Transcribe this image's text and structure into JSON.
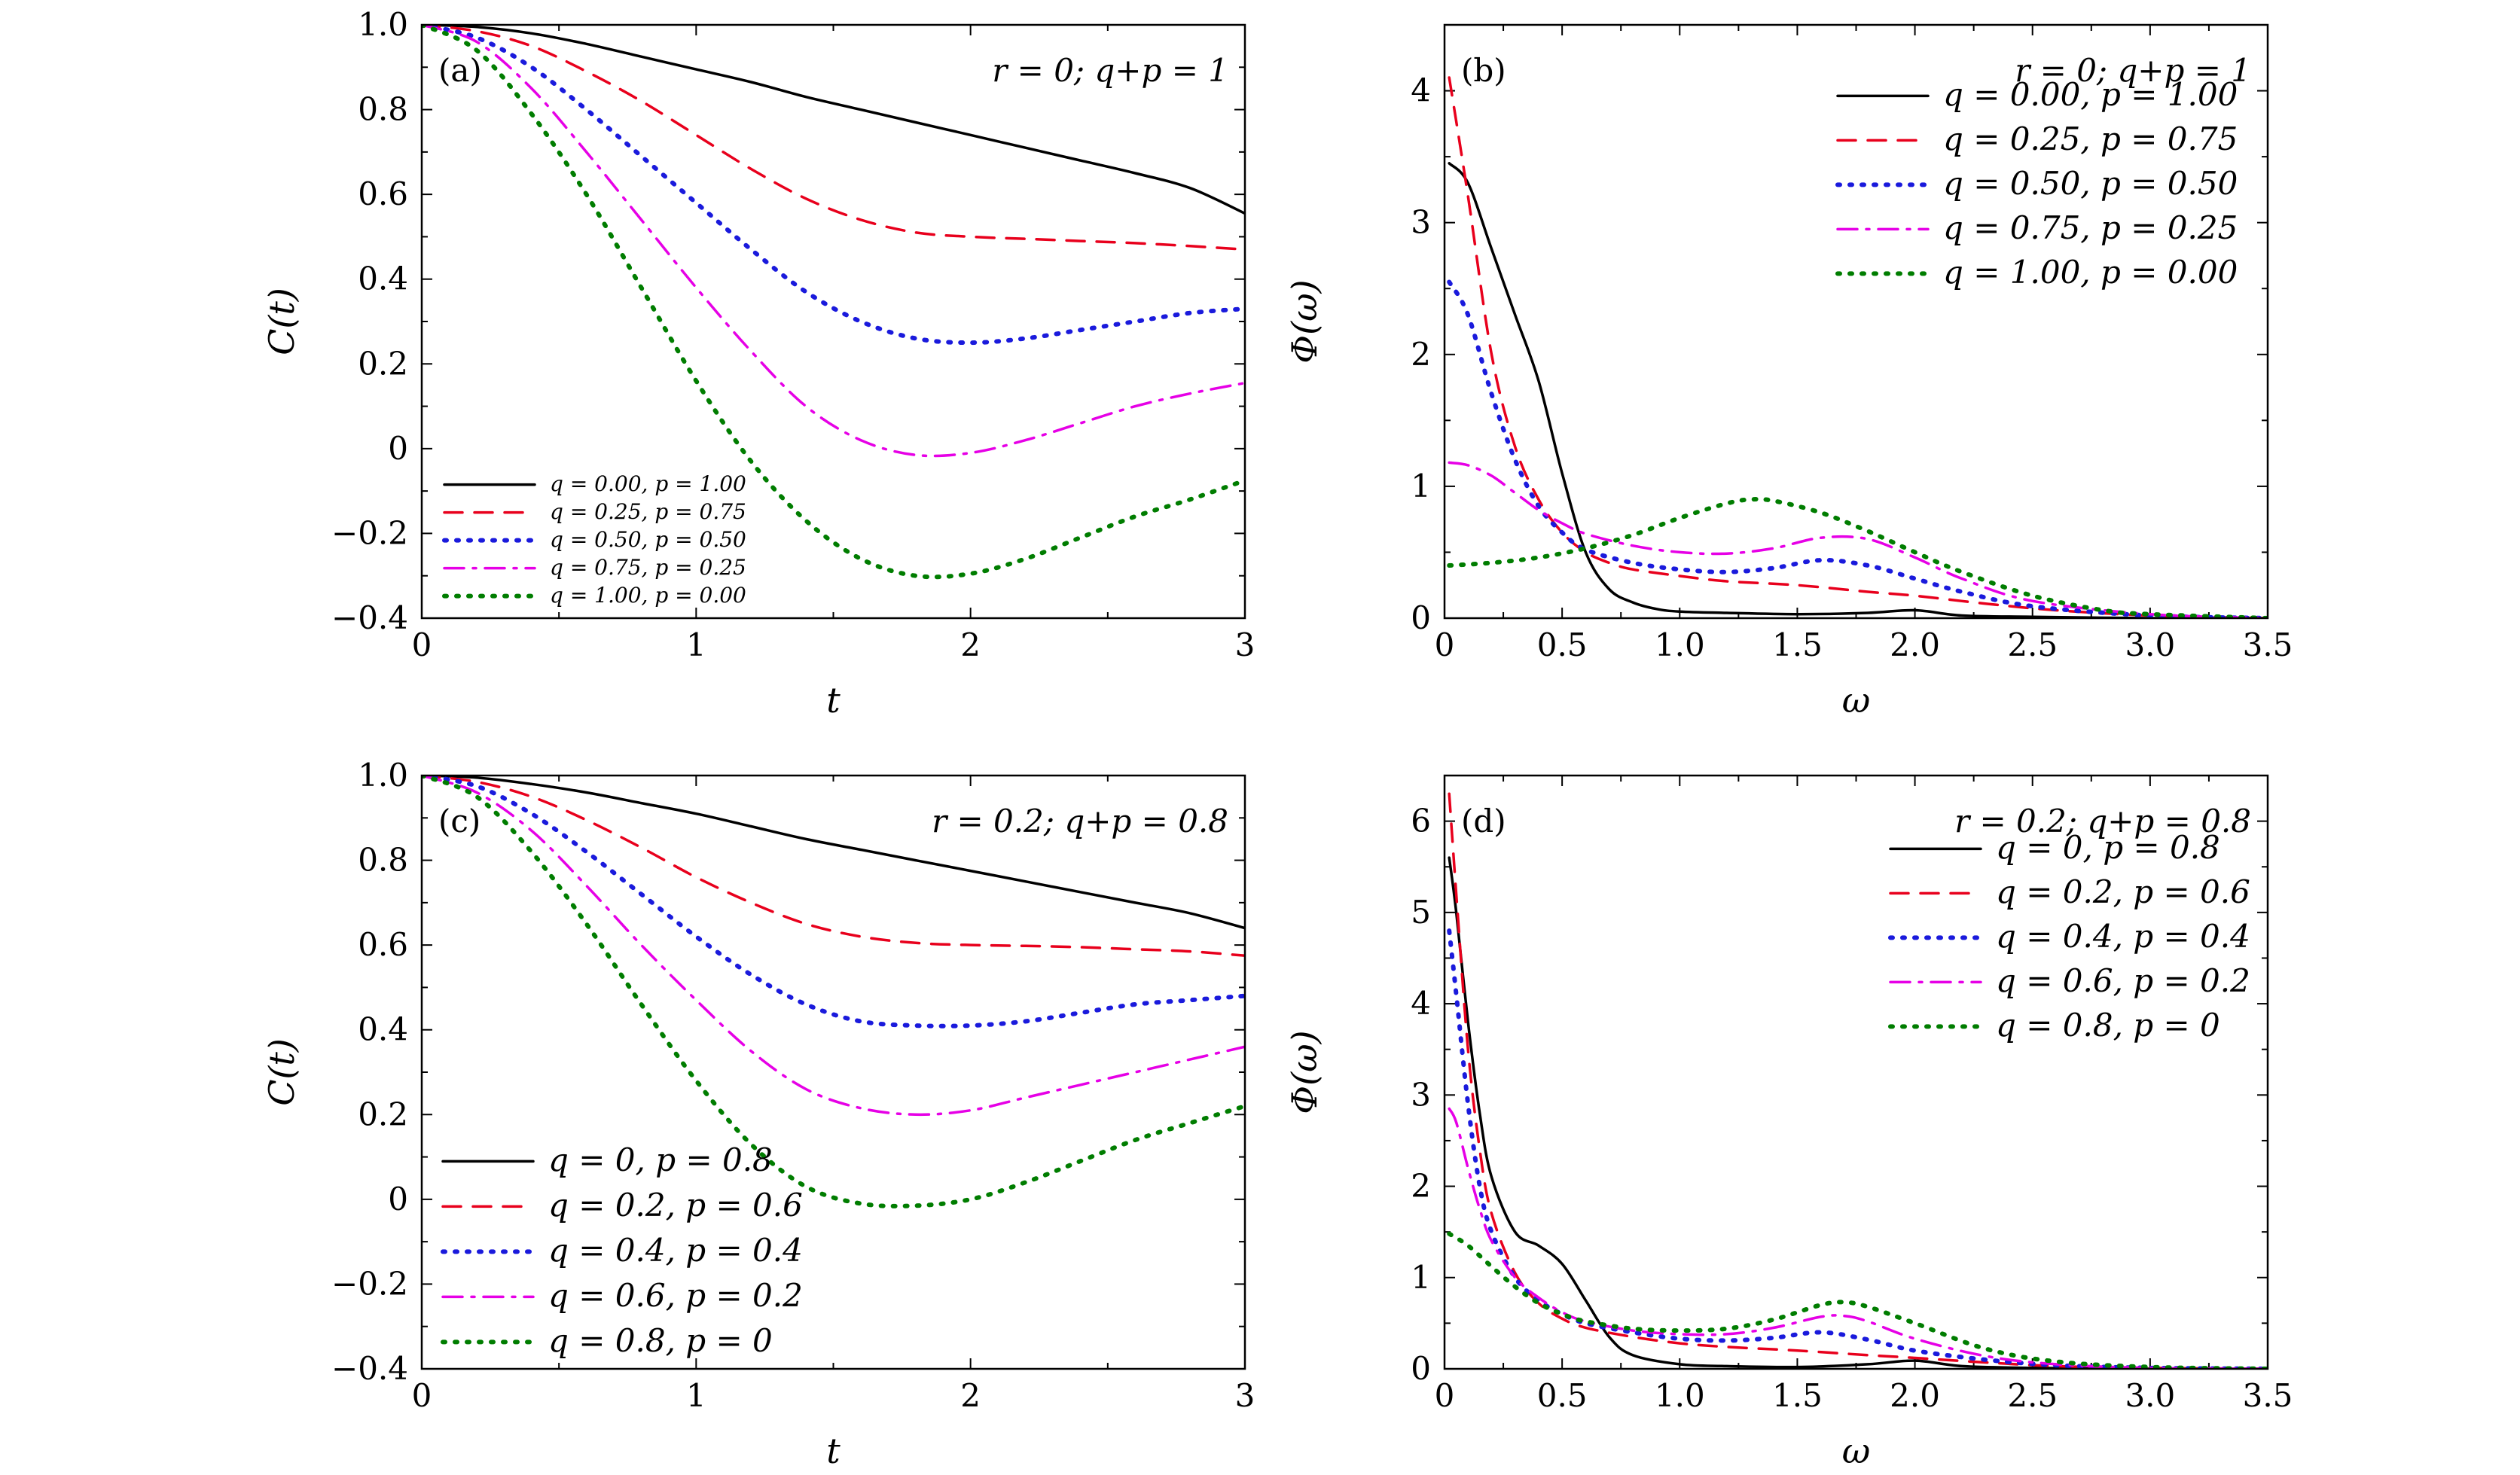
{
  "chart_data": [
    {
      "id": "a",
      "type": "line",
      "panel_label": "(a)",
      "params": "r = 0;  q+p = 1",
      "xlabel": "t",
      "ylabel": "C(t)",
      "xlim": [
        0,
        3
      ],
      "ylim": [
        -0.4,
        1.0
      ],
      "xticks": [
        0,
        1,
        2,
        3
      ],
      "xtick_labels": [
        "0",
        "1",
        "2",
        "3"
      ],
      "yticks": [
        -0.4,
        -0.2,
        0,
        0.2,
        0.4,
        0.6,
        0.8,
        1.0
      ],
      "ytick_labels": [
        "−0.4",
        "−0.2",
        "0",
        "0.2",
        "0.4",
        "0.6",
        "0.8",
        "1.0"
      ],
      "legend_position": "bottom-left",
      "series": [
        {
          "name": "q = 0.00,  p = 1.00",
          "color": "#000000",
          "dash": "solid",
          "x": [
            0,
            0.2,
            0.4,
            0.6,
            0.8,
            1.0,
            1.2,
            1.4,
            1.6,
            1.8,
            2.0,
            2.2,
            2.4,
            2.6,
            2.8,
            3.0
          ],
          "y": [
            1.0,
            0.995,
            0.98,
            0.955,
            0.925,
            0.895,
            0.865,
            0.83,
            0.8,
            0.77,
            0.74,
            0.71,
            0.68,
            0.65,
            0.615,
            0.555
          ]
        },
        {
          "name": "q = 0.25,  p = 0.75",
          "color": "#e8001c",
          "dash": "dashed",
          "x": [
            0,
            0.2,
            0.4,
            0.6,
            0.8,
            1.0,
            1.2,
            1.4,
            1.6,
            1.8,
            2.0,
            2.2,
            2.4,
            2.6,
            2.8,
            3.0
          ],
          "y": [
            1.0,
            0.985,
            0.95,
            0.89,
            0.82,
            0.74,
            0.66,
            0.59,
            0.54,
            0.51,
            0.5,
            0.495,
            0.49,
            0.485,
            0.478,
            0.47
          ]
        },
        {
          "name": "q = 0.50,  p = 0.50",
          "color": "#1a1adc",
          "dash": "dotted",
          "x": [
            0,
            0.2,
            0.4,
            0.6,
            0.8,
            1.0,
            1.2,
            1.4,
            1.6,
            1.8,
            2.0,
            2.2,
            2.4,
            2.6,
            2.8,
            3.0
          ],
          "y": [
            1.0,
            0.97,
            0.9,
            0.8,
            0.69,
            0.58,
            0.47,
            0.37,
            0.3,
            0.26,
            0.25,
            0.26,
            0.28,
            0.3,
            0.32,
            0.33
          ]
        },
        {
          "name": "q = 0.75,  p = 0.25",
          "color": "#e600e6",
          "dash": "dashdot",
          "x": [
            0,
            0.2,
            0.4,
            0.6,
            0.8,
            1.0,
            1.2,
            1.4,
            1.6,
            1.8,
            2.0,
            2.2,
            2.4,
            2.6,
            2.8,
            3.0
          ],
          "y": [
            1.0,
            0.96,
            0.85,
            0.7,
            0.54,
            0.38,
            0.23,
            0.1,
            0.02,
            -0.015,
            -0.01,
            0.02,
            0.06,
            0.1,
            0.13,
            0.155
          ]
        },
        {
          "name": "q = 1.00,  p = 0.00",
          "color": "#007d00",
          "dash": "dotted",
          "x": [
            0,
            0.2,
            0.4,
            0.6,
            0.8,
            1.0,
            1.2,
            1.4,
            1.6,
            1.8,
            2.0,
            2.2,
            2.4,
            2.6,
            2.8,
            3.0
          ],
          "y": [
            1.0,
            0.94,
            0.79,
            0.6,
            0.38,
            0.16,
            -0.03,
            -0.17,
            -0.26,
            -0.3,
            -0.295,
            -0.26,
            -0.21,
            -0.16,
            -0.12,
            -0.075
          ]
        }
      ]
    },
    {
      "id": "b",
      "type": "line",
      "panel_label": "(b)",
      "params": "r = 0;  q+p = 1",
      "xlabel": "ω",
      "ylabel": "Φ(ω)",
      "xlim": [
        0,
        3.5
      ],
      "ylim": [
        0,
        4.5
      ],
      "xticks": [
        0,
        0.5,
        1.0,
        1.5,
        2.0,
        2.5,
        3.0,
        3.5
      ],
      "xtick_labels": [
        "0",
        "0.5",
        "1.0",
        "1.5",
        "2.0",
        "2.5",
        "3.0",
        "3.5"
      ],
      "yticks": [
        0,
        1,
        2,
        3,
        4
      ],
      "ytick_labels": [
        "0",
        "1",
        "2",
        "3",
        "4"
      ],
      "legend_position": "top-right",
      "series": [
        {
          "name": "q = 0.00,  p = 1.00",
          "color": "#000000",
          "dash": "solid",
          "x": [
            0.02,
            0.1,
            0.2,
            0.3,
            0.4,
            0.5,
            0.6,
            0.7,
            0.8,
            0.9,
            1.0,
            1.2,
            1.5,
            1.8,
            2.0,
            2.2,
            2.5,
            3.0,
            3.5
          ],
          "y": [
            3.45,
            3.3,
            2.8,
            2.3,
            1.8,
            1.1,
            0.5,
            0.22,
            0.12,
            0.07,
            0.05,
            0.04,
            0.03,
            0.04,
            0.06,
            0.02,
            0.01,
            0.0,
            0.0
          ]
        },
        {
          "name": "q = 0.25,  p = 0.75",
          "color": "#e8001c",
          "dash": "dashed",
          "x": [
            0.02,
            0.1,
            0.2,
            0.3,
            0.4,
            0.5,
            0.6,
            0.7,
            0.8,
            1.0,
            1.2,
            1.5,
            1.8,
            2.0,
            2.3,
            2.6,
            3.0,
            3.5
          ],
          "y": [
            4.1,
            3.2,
            2.0,
            1.3,
            0.9,
            0.65,
            0.5,
            0.42,
            0.37,
            0.32,
            0.28,
            0.25,
            0.2,
            0.17,
            0.11,
            0.06,
            0.02,
            0.0
          ]
        },
        {
          "name": "q = 0.50,  p = 0.50",
          "color": "#1a1adc",
          "dash": "dotted",
          "x": [
            0.02,
            0.1,
            0.2,
            0.3,
            0.4,
            0.5,
            0.6,
            0.8,
            1.0,
            1.2,
            1.4,
            1.6,
            1.8,
            2.0,
            2.2,
            2.5,
            3.0,
            3.5
          ],
          "y": [
            2.55,
            2.3,
            1.7,
            1.2,
            0.85,
            0.65,
            0.52,
            0.42,
            0.37,
            0.35,
            0.38,
            0.44,
            0.4,
            0.3,
            0.2,
            0.09,
            0.02,
            0.0
          ]
        },
        {
          "name": "q = 0.75,  p = 0.25",
          "color": "#e600e6",
          "dash": "dashdot",
          "x": [
            0.02,
            0.1,
            0.2,
            0.3,
            0.4,
            0.5,
            0.6,
            0.8,
            1.0,
            1.2,
            1.4,
            1.6,
            1.8,
            2.0,
            2.2,
            2.5,
            3.0,
            3.5
          ],
          "y": [
            1.18,
            1.16,
            1.08,
            0.95,
            0.82,
            0.72,
            0.64,
            0.55,
            0.5,
            0.49,
            0.53,
            0.61,
            0.6,
            0.46,
            0.3,
            0.13,
            0.03,
            0.0
          ]
        },
        {
          "name": "q = 1.00,  p = 0.00",
          "color": "#007d00",
          "dash": "dotted",
          "x": [
            0.02,
            0.2,
            0.4,
            0.6,
            0.8,
            1.0,
            1.2,
            1.3,
            1.4,
            1.6,
            1.8,
            2.0,
            2.2,
            2.5,
            2.8,
            3.0,
            3.5
          ],
          "y": [
            0.4,
            0.42,
            0.46,
            0.53,
            0.63,
            0.76,
            0.87,
            0.9,
            0.89,
            0.8,
            0.66,
            0.5,
            0.35,
            0.17,
            0.06,
            0.03,
            0.0
          ]
        }
      ]
    },
    {
      "id": "c",
      "type": "line",
      "panel_label": "(c)",
      "params": "r = 0.2;  q+p = 0.8",
      "xlabel": "t",
      "ylabel": "C(t)",
      "xlim": [
        0,
        3
      ],
      "ylim": [
        -0.4,
        1.0
      ],
      "xticks": [
        0,
        1,
        2,
        3
      ],
      "xtick_labels": [
        "0",
        "1",
        "2",
        "3"
      ],
      "yticks": [
        -0.4,
        -0.2,
        0,
        0.2,
        0.4,
        0.6,
        0.8,
        1.0
      ],
      "ytick_labels": [
        "−0.4",
        "−0.2",
        "0",
        "0.2",
        "0.4",
        "0.6",
        "0.8",
        "1.0"
      ],
      "legend_position": "bottom-left",
      "series": [
        {
          "name": "q = 0,  p = 0.8",
          "color": "#000000",
          "dash": "solid",
          "x": [
            0,
            0.2,
            0.4,
            0.6,
            0.8,
            1.0,
            1.2,
            1.4,
            1.6,
            1.8,
            2.0,
            2.2,
            2.4,
            2.6,
            2.8,
            3.0
          ],
          "y": [
            1.0,
            0.995,
            0.98,
            0.96,
            0.935,
            0.91,
            0.88,
            0.85,
            0.825,
            0.8,
            0.775,
            0.75,
            0.725,
            0.7,
            0.675,
            0.64
          ]
        },
        {
          "name": "q = 0.2,  p = 0.6",
          "color": "#e8001c",
          "dash": "dashed",
          "x": [
            0,
            0.2,
            0.4,
            0.6,
            0.8,
            1.0,
            1.2,
            1.4,
            1.6,
            1.8,
            2.0,
            2.2,
            2.4,
            2.6,
            2.8,
            3.0
          ],
          "y": [
            1.0,
            0.985,
            0.95,
            0.895,
            0.83,
            0.76,
            0.7,
            0.65,
            0.62,
            0.605,
            0.6,
            0.598,
            0.595,
            0.59,
            0.585,
            0.575
          ]
        },
        {
          "name": "q = 0.4,  p = 0.4",
          "color": "#1a1adc",
          "dash": "dotted",
          "x": [
            0,
            0.2,
            0.4,
            0.6,
            0.8,
            1.0,
            1.2,
            1.4,
            1.6,
            1.8,
            2.0,
            2.2,
            2.4,
            2.6,
            2.8,
            3.0
          ],
          "y": [
            1.0,
            0.975,
            0.91,
            0.82,
            0.72,
            0.62,
            0.53,
            0.46,
            0.42,
            0.41,
            0.41,
            0.42,
            0.44,
            0.46,
            0.47,
            0.48
          ]
        },
        {
          "name": "q = 0.6,  p = 0.2",
          "color": "#e600e6",
          "dash": "dashdot",
          "x": [
            0,
            0.2,
            0.4,
            0.6,
            0.8,
            1.0,
            1.2,
            1.4,
            1.6,
            1.8,
            2.0,
            2.2,
            2.4,
            2.6,
            2.8,
            3.0
          ],
          "y": [
            1.0,
            0.96,
            0.87,
            0.74,
            0.6,
            0.47,
            0.35,
            0.26,
            0.215,
            0.2,
            0.21,
            0.24,
            0.27,
            0.3,
            0.33,
            0.36
          ]
        },
        {
          "name": "q = 0.8,  p = 0",
          "color": "#007d00",
          "dash": "dotted",
          "x": [
            0,
            0.2,
            0.4,
            0.6,
            0.8,
            1.0,
            1.2,
            1.4,
            1.6,
            1.8,
            2.0,
            2.2,
            2.4,
            2.6,
            2.8,
            3.0
          ],
          "y": [
            1.0,
            0.95,
            0.82,
            0.65,
            0.46,
            0.28,
            0.13,
            0.03,
            -0.01,
            -0.015,
            0.0,
            0.04,
            0.09,
            0.14,
            0.18,
            0.22
          ]
        }
      ]
    },
    {
      "id": "d",
      "type": "line",
      "panel_label": "(d)",
      "params": "r = 0.2;  q+p = 0.8",
      "xlabel": "ω",
      "ylabel": "Φ(ω)",
      "xlim": [
        0,
        3.5
      ],
      "ylim": [
        0,
        6.5
      ],
      "xticks": [
        0,
        0.5,
        1.0,
        1.5,
        2.0,
        2.5,
        3.0,
        3.5
      ],
      "xtick_labels": [
        "0",
        "0.5",
        "1.0",
        "1.5",
        "2.0",
        "2.5",
        "3.0",
        "3.5"
      ],
      "yticks": [
        0,
        1,
        2,
        3,
        4,
        5,
        6
      ],
      "ytick_labels": [
        "0",
        "1",
        "2",
        "3",
        "4",
        "5",
        "6"
      ],
      "legend_position": "top-right",
      "series": [
        {
          "name": "q = 0,  p = 0.8",
          "color": "#000000",
          "dash": "solid",
          "x": [
            0.02,
            0.05,
            0.1,
            0.15,
            0.2,
            0.3,
            0.4,
            0.5,
            0.6,
            0.7,
            0.8,
            1.0,
            1.2,
            1.5,
            1.8,
            2.0,
            2.2,
            2.5,
            3.0,
            3.5
          ],
          "y": [
            5.6,
            5.0,
            3.8,
            2.8,
            2.1,
            1.5,
            1.35,
            1.15,
            0.75,
            0.35,
            0.15,
            0.05,
            0.03,
            0.02,
            0.05,
            0.09,
            0.03,
            0.01,
            0.0,
            0.0
          ]
        },
        {
          "name": "q = 0.2,  p = 0.6",
          "color": "#e8001c",
          "dash": "dashed",
          "x": [
            0.02,
            0.05,
            0.1,
            0.15,
            0.2,
            0.3,
            0.4,
            0.5,
            0.6,
            0.8,
            1.0,
            1.2,
            1.5,
            1.8,
            2.0,
            2.3,
            2.6,
            3.0,
            3.5
          ],
          "y": [
            6.3,
            5.2,
            3.5,
            2.4,
            1.7,
            1.05,
            0.72,
            0.55,
            0.45,
            0.35,
            0.28,
            0.24,
            0.2,
            0.15,
            0.12,
            0.07,
            0.03,
            0.01,
            0.0
          ]
        },
        {
          "name": "q = 0.4,  p = 0.4",
          "color": "#1a1adc",
          "dash": "dotted",
          "x": [
            0.02,
            0.05,
            0.1,
            0.15,
            0.2,
            0.3,
            0.4,
            0.5,
            0.6,
            0.8,
            1.0,
            1.2,
            1.4,
            1.6,
            1.8,
            2.0,
            2.3,
            2.6,
            3.0,
            3.5
          ],
          "y": [
            4.8,
            4.1,
            2.9,
            2.0,
            1.5,
            1.0,
            0.75,
            0.6,
            0.5,
            0.4,
            0.33,
            0.31,
            0.34,
            0.4,
            0.32,
            0.2,
            0.1,
            0.04,
            0.01,
            0.0
          ]
        },
        {
          "name": "q = 0.6,  p = 0.2",
          "color": "#e600e6",
          "dash": "dashdot",
          "x": [
            0.02,
            0.05,
            0.1,
            0.15,
            0.2,
            0.3,
            0.4,
            0.5,
            0.6,
            0.8,
            1.0,
            1.2,
            1.4,
            1.6,
            1.7,
            1.8,
            2.0,
            2.3,
            2.6,
            3.0,
            3.5
          ],
          "y": [
            2.85,
            2.7,
            2.2,
            1.75,
            1.4,
            1.0,
            0.78,
            0.62,
            0.52,
            0.42,
            0.38,
            0.38,
            0.45,
            0.57,
            0.58,
            0.52,
            0.33,
            0.14,
            0.05,
            0.01,
            0.0
          ]
        },
        {
          "name": "q = 0.8,  p = 0",
          "color": "#007d00",
          "dash": "dotted",
          "x": [
            0.02,
            0.1,
            0.2,
            0.3,
            0.4,
            0.5,
            0.6,
            0.8,
            1.0,
            1.2,
            1.4,
            1.6,
            1.7,
            1.8,
            2.0,
            2.3,
            2.6,
            3.0,
            3.5
          ],
          "y": [
            1.48,
            1.35,
            1.12,
            0.9,
            0.72,
            0.6,
            0.52,
            0.44,
            0.42,
            0.44,
            0.54,
            0.7,
            0.73,
            0.68,
            0.5,
            0.22,
            0.08,
            0.02,
            0.0
          ]
        }
      ]
    }
  ]
}
